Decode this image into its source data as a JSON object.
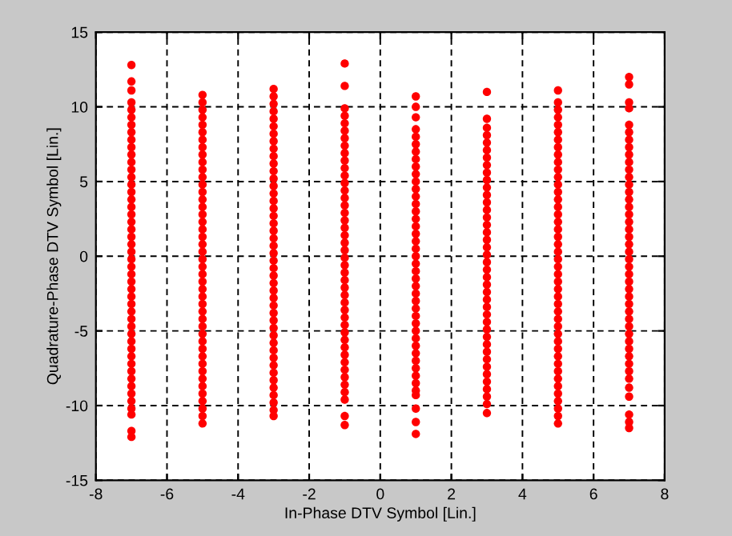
{
  "chart_data": {
    "type": "scatter",
    "xlabel": "In-Phase DTV Symbol [Lin.]",
    "ylabel": "Quadrature-Phase DTV Symbol [Lin.]",
    "xlim": [
      -8,
      8
    ],
    "xticks": [
      -8,
      -6,
      -4,
      -2,
      0,
      2,
      4,
      6,
      8
    ],
    "ylim": [
      -15,
      15
    ],
    "yticks": [
      -15,
      -10,
      -5,
      0,
      5,
      10,
      15
    ],
    "grid": true,
    "marker": "circle",
    "series": [
      {
        "color": "#ff0000",
        "x": [
          -7,
          -7,
          -7,
          -7,
          -7,
          -7,
          -7,
          -7,
          -7,
          -7,
          -7,
          -7,
          -7,
          -7,
          -7,
          -7,
          -7,
          -7,
          -7,
          -7,
          -7,
          -7,
          -7,
          -7,
          -7,
          -7,
          -7,
          -7,
          -7,
          -7,
          -7,
          -7,
          -7,
          -7,
          -7,
          -7,
          -7,
          -7,
          -7,
          -7,
          -7,
          -7,
          -7,
          -7,
          -7,
          -7,
          -7,
          -7
        ],
        "values": [
          12.8,
          11.7,
          11.1,
          10.3,
          9.8,
          9.3,
          8.8,
          8.3,
          7.8,
          7.3,
          6.8,
          6.3,
          5.8,
          5.3,
          4.8,
          4.3,
          3.8,
          3.3,
          2.8,
          2.3,
          1.8,
          1.3,
          0.8,
          0.3,
          -0.2,
          -0.7,
          -1.2,
          -1.7,
          -2.2,
          -2.7,
          -3.2,
          -3.7,
          -4.2,
          -4.7,
          -5.2,
          -5.7,
          -6.2,
          -6.7,
          -7.2,
          -7.7,
          -8.2,
          -8.7,
          -9.2,
          -9.7,
          -10.2,
          -10.6,
          -11.7,
          -12.1
        ]
      },
      {
        "color": "#ff0000",
        "x": [
          -5,
          -5,
          -5,
          -5,
          -5,
          -5,
          -5,
          -5,
          -5,
          -5,
          -5,
          -5,
          -5,
          -5,
          -5,
          -5,
          -5,
          -5,
          -5,
          -5,
          -5,
          -5,
          -5,
          -5,
          -5,
          -5,
          -5,
          -5,
          -5,
          -5,
          -5,
          -5,
          -5,
          -5,
          -5,
          -5,
          -5,
          -5,
          -5,
          -5,
          -5,
          -5,
          -5,
          -5,
          -5
        ],
        "values": [
          10.8,
          10.3,
          9.8,
          9.3,
          8.8,
          8.3,
          7.8,
          7.3,
          6.8,
          6.3,
          5.8,
          5.3,
          4.8,
          4.3,
          3.8,
          3.3,
          2.8,
          2.3,
          1.8,
          1.3,
          0.8,
          0.3,
          -0.2,
          -0.7,
          -1.2,
          -1.7,
          -2.2,
          -2.7,
          -3.2,
          -3.7,
          -4.2,
          -4.7,
          -5.2,
          -5.7,
          -6.2,
          -6.7,
          -7.2,
          -7.7,
          -8.2,
          -8.7,
          -9.2,
          -9.7,
          -10.2,
          -10.7,
          -11.2
        ]
      },
      {
        "color": "#ff0000",
        "x": [
          -3,
          -3,
          -3,
          -3,
          -3,
          -3,
          -3,
          -3,
          -3,
          -3,
          -3,
          -3,
          -3,
          -3,
          -3,
          -3,
          -3,
          -3,
          -3,
          -3,
          -3,
          -3,
          -3,
          -3,
          -3,
          -3,
          -3,
          -3,
          -3,
          -3,
          -3,
          -3,
          -3,
          -3,
          -3,
          -3,
          -3,
          -3,
          -3,
          -3,
          -3,
          -3,
          -3,
          -3,
          -3
        ],
        "values": [
          11.2,
          10.7,
          10.2,
          9.7,
          9.2,
          8.7,
          8.2,
          7.7,
          7.2,
          6.7,
          6.2,
          5.7,
          5.2,
          4.7,
          4.2,
          3.7,
          3.2,
          2.7,
          2.2,
          1.7,
          1.2,
          0.7,
          0.2,
          -0.3,
          -0.8,
          -1.3,
          -1.8,
          -2.3,
          -2.8,
          -3.3,
          -3.8,
          -4.3,
          -4.8,
          -5.3,
          -5.8,
          -6.3,
          -6.8,
          -7.3,
          -7.8,
          -8.3,
          -8.8,
          -9.3,
          -9.8,
          -10.3,
          -10.7
        ]
      },
      {
        "color": "#ff0000",
        "x": [
          -1,
          -1,
          -1,
          -1,
          -1,
          -1,
          -1,
          -1,
          -1,
          -1,
          -1,
          -1,
          -1,
          -1,
          -1,
          -1,
          -1,
          -1,
          -1,
          -1,
          -1,
          -1,
          -1,
          -1,
          -1,
          -1,
          -1,
          -1,
          -1,
          -1,
          -1,
          -1,
          -1,
          -1,
          -1,
          -1,
          -1,
          -1,
          -1,
          -1,
          -1,
          -1,
          -1,
          -1
        ],
        "values": [
          12.9,
          11.4,
          9.9,
          9.4,
          8.9,
          8.4,
          7.9,
          7.4,
          6.9,
          6.4,
          5.9,
          5.4,
          4.9,
          4.4,
          3.9,
          3.4,
          2.9,
          2.4,
          1.9,
          1.4,
          0.9,
          0.4,
          -0.1,
          -0.6,
          -1.1,
          -1.6,
          -2.1,
          -2.6,
          -3.1,
          -3.6,
          -4.1,
          -4.6,
          -5.1,
          -5.6,
          -6.1,
          -6.6,
          -7.1,
          -7.6,
          -8.1,
          -8.6,
          -9.1,
          -9.6,
          -10.7,
          -11.3
        ]
      },
      {
        "color": "#ff0000",
        "x": [
          1,
          1,
          1,
          1,
          1,
          1,
          1,
          1,
          1,
          1,
          1,
          1,
          1,
          1,
          1,
          1,
          1,
          1,
          1,
          1,
          1,
          1,
          1,
          1,
          1,
          1,
          1,
          1,
          1,
          1,
          1,
          1,
          1,
          1,
          1,
          1,
          1,
          1,
          1,
          1,
          1,
          1,
          1
        ],
        "values": [
          10.7,
          10.0,
          9.3,
          8.5,
          8.0,
          7.5,
          7.0,
          6.5,
          6.0,
          5.5,
          5.0,
          4.5,
          4.0,
          3.5,
          3.0,
          2.5,
          2.0,
          1.5,
          1.0,
          0.5,
          0.0,
          -0.5,
          -1.0,
          -1.5,
          -2.0,
          -2.5,
          -3.0,
          -3.5,
          -4.0,
          -4.5,
          -5.0,
          -5.5,
          -6.0,
          -6.5,
          -7.0,
          -7.5,
          -8.0,
          -8.5,
          -9.0,
          -9.3,
          -10.2,
          -11.1,
          -11.9
        ]
      },
      {
        "color": "#ff0000",
        "x": [
          3,
          3,
          3,
          3,
          3,
          3,
          3,
          3,
          3,
          3,
          3,
          3,
          3,
          3,
          3,
          3,
          3,
          3,
          3,
          3,
          3,
          3,
          3,
          3,
          3,
          3,
          3,
          3,
          3,
          3,
          3,
          3,
          3,
          3,
          3,
          3,
          3,
          3,
          3,
          3,
          3
        ],
        "values": [
          11.0,
          9.2,
          8.6,
          8.1,
          7.6,
          7.1,
          6.6,
          6.1,
          5.6,
          5.1,
          4.6,
          4.1,
          3.6,
          3.1,
          2.6,
          2.1,
          1.6,
          1.1,
          0.6,
          0.1,
          -0.4,
          -0.9,
          -1.4,
          -1.9,
          -2.4,
          -2.9,
          -3.4,
          -3.9,
          -4.4,
          -4.9,
          -5.4,
          -5.9,
          -6.4,
          -6.9,
          -7.4,
          -7.9,
          -8.4,
          -8.9,
          -9.4,
          -9.9,
          -10.5
        ]
      },
      {
        "color": "#ff0000",
        "x": [
          5,
          5,
          5,
          5,
          5,
          5,
          5,
          5,
          5,
          5,
          5,
          5,
          5,
          5,
          5,
          5,
          5,
          5,
          5,
          5,
          5,
          5,
          5,
          5,
          5,
          5,
          5,
          5,
          5,
          5,
          5,
          5,
          5,
          5,
          5,
          5,
          5,
          5,
          5,
          5,
          5,
          5,
          5,
          5,
          5
        ],
        "values": [
          11.1,
          10.3,
          9.8,
          9.3,
          8.8,
          8.3,
          7.8,
          7.3,
          6.8,
          6.3,
          5.8,
          5.3,
          4.8,
          4.3,
          3.8,
          3.3,
          2.8,
          2.3,
          1.8,
          1.3,
          0.8,
          0.3,
          -0.2,
          -0.7,
          -1.2,
          -1.7,
          -2.2,
          -2.7,
          -3.2,
          -3.7,
          -4.2,
          -4.7,
          -5.2,
          -5.7,
          -6.2,
          -6.7,
          -7.2,
          -7.7,
          -8.2,
          -8.7,
          -9.2,
          -9.7,
          -10.2,
          -10.7,
          -11.2
        ]
      },
      {
        "color": "#ff0000",
        "x": [
          7,
          7,
          7,
          7,
          7,
          7,
          7,
          7,
          7,
          7,
          7,
          7,
          7,
          7,
          7,
          7,
          7,
          7,
          7,
          7,
          7,
          7,
          7,
          7,
          7,
          7,
          7,
          7,
          7,
          7,
          7,
          7,
          7,
          7,
          7,
          7,
          7,
          7,
          7,
          7,
          7,
          7,
          7,
          7
        ],
        "values": [
          12.0,
          11.5,
          10.3,
          9.9,
          8.8,
          8.3,
          7.8,
          7.3,
          6.8,
          6.3,
          5.8,
          5.3,
          4.8,
          4.3,
          3.8,
          3.3,
          2.8,
          2.3,
          1.8,
          1.3,
          0.8,
          0.3,
          -0.2,
          -0.7,
          -1.2,
          -1.7,
          -2.2,
          -2.7,
          -3.2,
          -3.7,
          -4.2,
          -4.7,
          -5.2,
          -5.7,
          -6.2,
          -6.7,
          -7.2,
          -7.7,
          -8.2,
          -8.8,
          -9.4,
          -10.6,
          -11.1,
          -11.5
        ]
      }
    ]
  }
}
